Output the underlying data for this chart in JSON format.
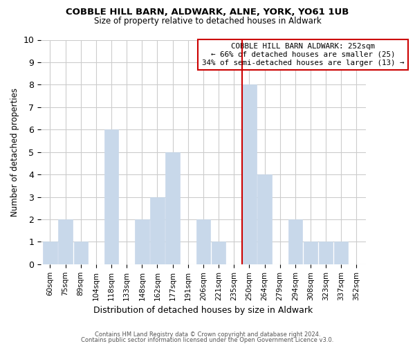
{
  "title": "COBBLE HILL BARN, ALDWARK, ALNE, YORK, YO61 1UB",
  "subtitle": "Size of property relative to detached houses in Aldwark",
  "xlabel": "Distribution of detached houses by size in Aldwark",
  "ylabel": "Number of detached properties",
  "bar_labels": [
    "60sqm",
    "75sqm",
    "89sqm",
    "104sqm",
    "118sqm",
    "133sqm",
    "148sqm",
    "162sqm",
    "177sqm",
    "191sqm",
    "206sqm",
    "221sqm",
    "235sqm",
    "250sqm",
    "264sqm",
    "279sqm",
    "294sqm",
    "308sqm",
    "323sqm",
    "337sqm",
    "352sqm"
  ],
  "bar_values": [
    1,
    2,
    1,
    0,
    6,
    0,
    2,
    3,
    5,
    0,
    2,
    1,
    0,
    8,
    4,
    0,
    2,
    1,
    1,
    1,
    0
  ],
  "bar_color": "#c8d8ea",
  "property_line_index": 13,
  "annotation_text": "COBBLE HILL BARN ALDWARK: 252sqm\n← 66% of detached houses are smaller (25)\n34% of semi-detached houses are larger (13) →",
  "ylim": [
    0,
    10
  ],
  "yticks": [
    0,
    1,
    2,
    3,
    4,
    5,
    6,
    7,
    8,
    9,
    10
  ],
  "footer_line1": "Contains HM Land Registry data © Crown copyright and database right 2024.",
  "footer_line2": "Contains public sector information licensed under the Open Government Licence v3.0.",
  "bg_color": "#ffffff",
  "grid_color": "#cccccc",
  "annotation_box_color": "#ffffff",
  "annotation_box_edge": "#cc0000",
  "property_line_color": "#cc0000"
}
